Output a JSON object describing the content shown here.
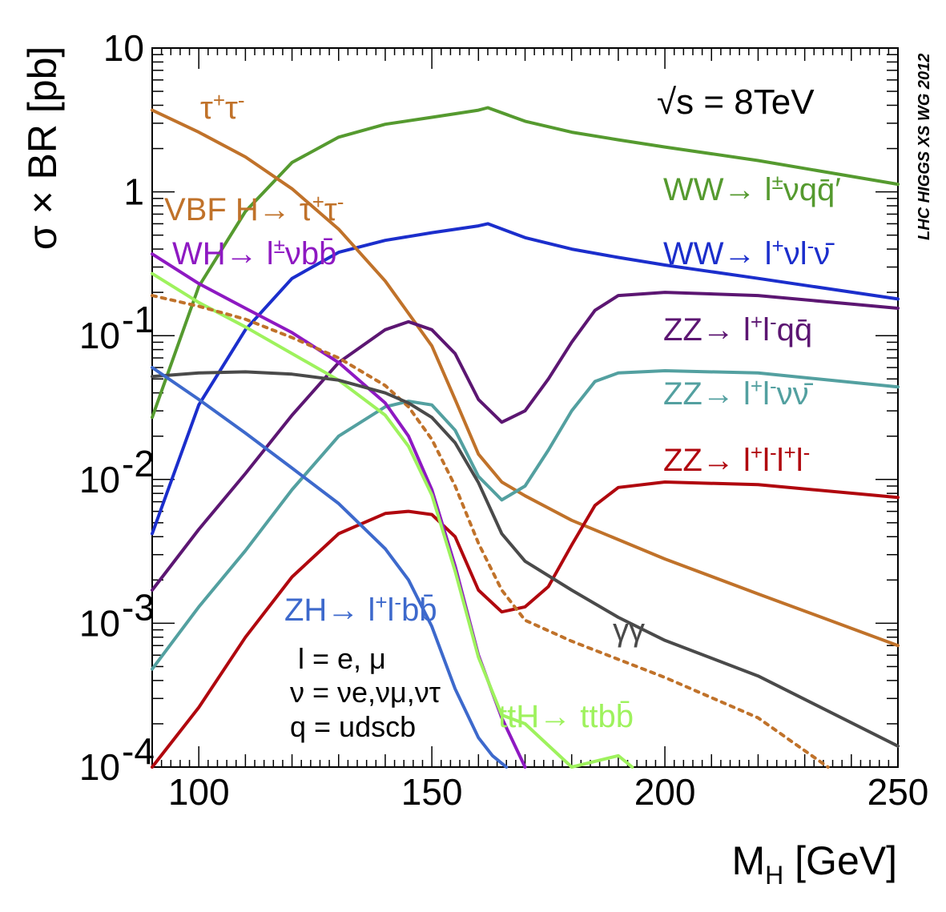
{
  "chart_data": {
    "type": "line",
    "title": "",
    "energy_label": "√s = 8TeV",
    "watermark": "LHC HIGGS XS WG 2012",
    "xlabel": "M_H [GeV]",
    "xlabel_main": "M",
    "xlabel_sub": "H",
    "xlabel_rest": " [GeV]",
    "ylabel": "σ × BR [pb]",
    "xlim": [
      90,
      250
    ],
    "ylim": [
      0.0001,
      10
    ],
    "yscale": "log",
    "x_ticks": [
      {
        "value": 100,
        "label": "100"
      },
      {
        "value": 150,
        "label": "150"
      },
      {
        "value": 200,
        "label": "200"
      },
      {
        "value": 250,
        "label": "250"
      }
    ],
    "y_ticks": [
      {
        "value": 10,
        "label": "10",
        "exp": ""
      },
      {
        "value": 1,
        "label": "1",
        "exp": ""
      },
      {
        "value": 0.1,
        "label": "10",
        "exp": "-1"
      },
      {
        "value": 0.01,
        "label": "10",
        "exp": "-2"
      },
      {
        "value": 0.001,
        "label": "10",
        "exp": "-3"
      },
      {
        "value": 0.0001,
        "label": "10",
        "exp": "-4"
      }
    ],
    "notes": [
      "l = e, μ",
      "ν = νe,νμ,ντ",
      "q = udscb"
    ],
    "series": [
      {
        "name": "WW → l±νqq̄′",
        "color": "#559a2f",
        "dash": "",
        "x": [
          90,
          100,
          110,
          120,
          130,
          140,
          150,
          160,
          162,
          170,
          180,
          190,
          200,
          220,
          250
        ],
        "y": [
          0.027,
          0.22,
          0.73,
          1.6,
          2.4,
          2.95,
          3.3,
          3.7,
          3.85,
          3.1,
          2.6,
          2.3,
          2.05,
          1.65,
          1.13
        ]
      },
      {
        "name": "WW → l+νl−ν̄",
        "color": "#1b2ecc",
        "dash": "",
        "x": [
          90,
          100,
          110,
          120,
          130,
          140,
          150,
          160,
          162,
          170,
          180,
          190,
          200,
          220,
          250
        ],
        "y": [
          0.0042,
          0.033,
          0.11,
          0.25,
          0.38,
          0.46,
          0.52,
          0.58,
          0.6,
          0.48,
          0.4,
          0.35,
          0.31,
          0.25,
          0.18
        ]
      },
      {
        "name": "VBF H → τ+τ−",
        "color": "#c0722a",
        "dash": "",
        "x": [
          90,
          100,
          110,
          120,
          130,
          140,
          150,
          155,
          160,
          165,
          170,
          180,
          200,
          220,
          250
        ],
        "y": [
          3.7,
          2.6,
          1.75,
          1.05,
          0.55,
          0.24,
          0.085,
          0.036,
          0.015,
          0.0096,
          0.0077,
          0.0052,
          0.0028,
          0.0016,
          0.0007
        ]
      },
      {
        "name": "ZZ → l+l−qq̄",
        "color": "#5c1672",
        "dash": "",
        "x": [
          90,
          100,
          110,
          120,
          130,
          140,
          145,
          150,
          155,
          160,
          165,
          170,
          175,
          180,
          185,
          190,
          200,
          220,
          250
        ],
        "y": [
          0.0017,
          0.0045,
          0.011,
          0.028,
          0.065,
          0.11,
          0.125,
          0.11,
          0.075,
          0.036,
          0.025,
          0.03,
          0.05,
          0.09,
          0.15,
          0.19,
          0.2,
          0.19,
          0.155
        ]
      },
      {
        "name": "ZZ → l+l−νν̄",
        "color": "#53a0a0",
        "dash": "",
        "x": [
          90,
          100,
          110,
          120,
          130,
          140,
          145,
          150,
          155,
          160,
          165,
          170,
          175,
          180,
          185,
          190,
          200,
          220,
          250
        ],
        "y": [
          0.00048,
          0.0013,
          0.0032,
          0.0085,
          0.02,
          0.032,
          0.035,
          0.033,
          0.022,
          0.0105,
          0.0072,
          0.009,
          0.016,
          0.03,
          0.048,
          0.055,
          0.057,
          0.055,
          0.044
        ]
      },
      {
        "name": "ZZ → l+l−l+l−",
        "color": "#b0070e",
        "dash": "",
        "x": [
          90,
          100,
          110,
          120,
          130,
          140,
          145,
          150,
          155,
          160,
          165,
          170,
          175,
          180,
          185,
          190,
          200,
          220,
          250
        ],
        "y": [
          0.0001,
          0.00026,
          0.0008,
          0.0021,
          0.0042,
          0.0058,
          0.006,
          0.0057,
          0.004,
          0.0017,
          0.0012,
          0.0013,
          0.0018,
          0.0035,
          0.0066,
          0.0088,
          0.0096,
          0.0092,
          0.0075
        ]
      },
      {
        "name": "WH → l±νbb̄",
        "color": "#8e19c2",
        "dash": "",
        "x": [
          90,
          100,
          110,
          120,
          130,
          140,
          145,
          150,
          155,
          160,
          165,
          170
        ],
        "y": [
          0.37,
          0.23,
          0.155,
          0.105,
          0.065,
          0.034,
          0.02,
          0.0085,
          0.0025,
          0.0006,
          0.00022,
          0.0001
        ]
      },
      {
        "name": "ttH → ttbb̄",
        "color": "#9ef25d",
        "dash": "",
        "x": [
          90,
          100,
          110,
          120,
          130,
          140,
          145,
          150,
          155,
          160,
          165,
          170,
          180,
          190,
          193
        ],
        "y": [
          0.27,
          0.17,
          0.115,
          0.075,
          0.049,
          0.028,
          0.017,
          0.0078,
          0.0023,
          0.00058,
          0.00023,
          0.0002,
          0.0001,
          0.00012,
          0.0001
        ]
      },
      {
        "name": "",
        "color": "#c0722a",
        "dash": "5,7",
        "x": [
          90,
          100,
          110,
          120,
          130,
          140,
          145,
          150,
          155,
          160,
          165,
          170,
          180,
          200,
          220,
          235
        ],
        "y": [
          0.19,
          0.16,
          0.13,
          0.097,
          0.07,
          0.045,
          0.032,
          0.019,
          0.009,
          0.0036,
          0.0017,
          0.00105,
          0.00075,
          0.00042,
          0.00022,
          0.0001
        ]
      },
      {
        "name": "γγ",
        "color": "#4a4a4a",
        "dash": "",
        "x": [
          90,
          100,
          110,
          120,
          130,
          140,
          145,
          150,
          155,
          160,
          165,
          170,
          180,
          190,
          200,
          220,
          250
        ],
        "y": [
          0.052,
          0.055,
          0.056,
          0.054,
          0.049,
          0.04,
          0.034,
          0.027,
          0.018,
          0.0095,
          0.0042,
          0.0027,
          0.0017,
          0.0011,
          0.00076,
          0.00043,
          0.00014
        ]
      },
      {
        "name": "ZH → l+l−bb̄",
        "color": "#3d69cc",
        "dash": "",
        "x": [
          90,
          100,
          110,
          120,
          130,
          140,
          145,
          150,
          155,
          160,
          163,
          166
        ],
        "y": [
          0.06,
          0.036,
          0.021,
          0.012,
          0.0068,
          0.0033,
          0.002,
          0.00095,
          0.00035,
          0.00016,
          0.00012,
          0.0001
        ]
      }
    ]
  },
  "labels": {
    "tautau": {
      "base": "τ",
      "sup1": "+",
      "mid": "τ",
      "sup2": "-"
    },
    "vbf": {
      "pre": "VBF H",
      "arrow": "→",
      "mid": " τ",
      "sup1": "+",
      "mid2": "τ",
      "sup2": "-"
    },
    "wh": {
      "pre": "WH",
      "arrow": "→",
      "mid": " l",
      "sup1": "±",
      "post": "νbb̄"
    },
    "ww_qq": {
      "pre": "WW",
      "arrow": "→",
      "mid": " l",
      "sup1": "±",
      "post": "νqq̄′"
    },
    "ww_lv": {
      "pre": "WW",
      "arrow": "→",
      "mid": " l",
      "sup1": "+",
      "mid2": "νl",
      "sup2": "-",
      "post": "ν̄"
    },
    "zz_qq": {
      "pre": "ZZ",
      "arrow": "→",
      "mid": " l",
      "sup1": "+",
      "mid2": "l",
      "sup2": "-",
      "post": "qq̄"
    },
    "zz_nn": {
      "pre": "ZZ",
      "arrow": "→",
      "mid": " l",
      "sup1": "+",
      "mid2": "l",
      "sup2": "-",
      "post": "νν̄"
    },
    "zz_4l": {
      "pre": "ZZ",
      "arrow": "→",
      "mid": " l",
      "sup1": "+",
      "mid2": "l",
      "sup2": "-",
      "mid3": "l",
      "sup3": "+",
      "mid4": "l",
      "sup4": "-"
    },
    "zh": {
      "pre": "ZH",
      "arrow": "→",
      "mid": " l",
      "sup1": "+",
      "mid2": "l",
      "sup2": "-",
      "post": "bb̄"
    },
    "tth": {
      "pre": "ttH",
      "arrow": "→",
      "post": " ttbb̄"
    },
    "gg": "γγ"
  }
}
